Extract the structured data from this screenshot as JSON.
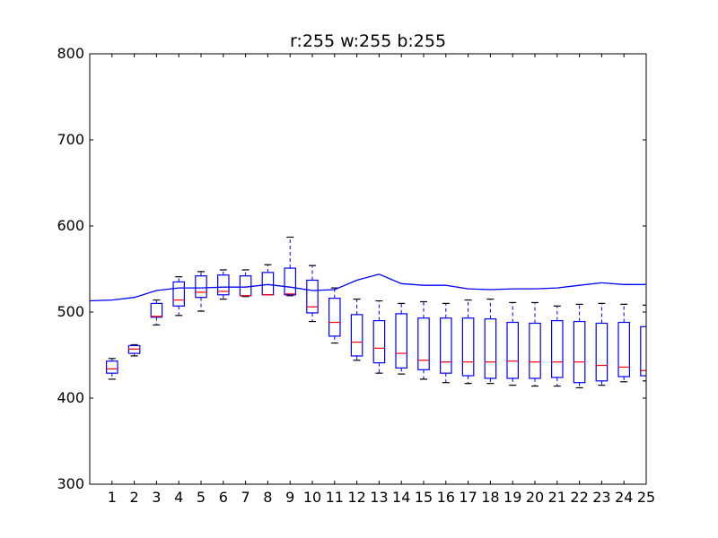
{
  "chart_data": {
    "type": "boxplot",
    "title": "r:255 w:255 b:255",
    "xlabel": "",
    "ylabel": "",
    "xlim": [
      0,
      25
    ],
    "ylim": [
      300,
      800
    ],
    "x_ticks": [
      1,
      2,
      3,
      4,
      5,
      6,
      7,
      8,
      9,
      10,
      11,
      12,
      13,
      14,
      15,
      16,
      17,
      18,
      19,
      20,
      21,
      22,
      23,
      24,
      25
    ],
    "y_ticks": [
      300,
      400,
      500,
      600,
      700,
      800
    ],
    "grid": false,
    "colors": {
      "box": "#0000ff",
      "median": "#ff0000",
      "whisker": "#000000",
      "line": "#0000ff",
      "axes": "#000000"
    },
    "boxes": [
      {
        "x": 1,
        "whisker_low": 422,
        "q1": 429,
        "median": 434,
        "q3": 443,
        "whisker_high": 446
      },
      {
        "x": 2,
        "whisker_low": 449,
        "q1": 452,
        "median": 457,
        "q3": 461,
        "whisker_high": 462
      },
      {
        "x": 3,
        "whisker_low": 485,
        "q1": 494,
        "median": 495,
        "q3": 510,
        "whisker_high": 514
      },
      {
        "x": 4,
        "whisker_low": 496,
        "q1": 507,
        "median": 514,
        "q3": 535,
        "whisker_high": 541
      },
      {
        "x": 5,
        "whisker_low": 501,
        "q1": 517,
        "median": 523,
        "q3": 542,
        "whisker_high": 547
      },
      {
        "x": 6,
        "whisker_low": 515,
        "q1": 520,
        "median": 524,
        "q3": 543,
        "whisker_high": 549
      },
      {
        "x": 7,
        "whisker_low": 518,
        "q1": 519,
        "median": 519,
        "q3": 542,
        "whisker_high": 549
      },
      {
        "x": 8,
        "whisker_low": 520,
        "q1": 520,
        "median": 520,
        "q3": 546,
        "whisker_high": 555
      },
      {
        "x": 9,
        "whisker_low": 519,
        "q1": 520,
        "median": 521,
        "q3": 551,
        "whisker_high": 587
      },
      {
        "x": 10,
        "whisker_low": 489,
        "q1": 499,
        "median": 506,
        "q3": 537,
        "whisker_high": 554
      },
      {
        "x": 11,
        "whisker_low": 464,
        "q1": 472,
        "median": 488,
        "q3": 516,
        "whisker_high": 528
      },
      {
        "x": 12,
        "whisker_low": 444,
        "q1": 449,
        "median": 465,
        "q3": 497,
        "whisker_high": 515
      },
      {
        "x": 13,
        "whisker_low": 429,
        "q1": 441,
        "median": 458,
        "q3": 490,
        "whisker_high": 513
      },
      {
        "x": 14,
        "whisker_low": 428,
        "q1": 435,
        "median": 452,
        "q3": 498,
        "whisker_high": 510
      },
      {
        "x": 15,
        "whisker_low": 422,
        "q1": 433,
        "median": 444,
        "q3": 493,
        "whisker_high": 512
      },
      {
        "x": 16,
        "whisker_low": 418,
        "q1": 429,
        "median": 442,
        "q3": 493,
        "whisker_high": 510
      },
      {
        "x": 17,
        "whisker_low": 417,
        "q1": 426,
        "median": 442,
        "q3": 493,
        "whisker_high": 514
      },
      {
        "x": 18,
        "whisker_low": 417,
        "q1": 423,
        "median": 442,
        "q3": 492,
        "whisker_high": 515
      },
      {
        "x": 19,
        "whisker_low": 415,
        "q1": 423,
        "median": 443,
        "q3": 488,
        "whisker_high": 511
      },
      {
        "x": 20,
        "whisker_low": 414,
        "q1": 423,
        "median": 442,
        "q3": 487,
        "whisker_high": 511
      },
      {
        "x": 21,
        "whisker_low": 414,
        "q1": 424,
        "median": 442,
        "q3": 490,
        "whisker_high": 507
      },
      {
        "x": 22,
        "whisker_low": 412,
        "q1": 418,
        "median": 442,
        "q3": 489,
        "whisker_high": 509
      },
      {
        "x": 23,
        "whisker_low": 415,
        "q1": 420,
        "median": 438,
        "q3": 487,
        "whisker_high": 510
      },
      {
        "x": 24,
        "whisker_low": 419,
        "q1": 425,
        "median": 436,
        "q3": 488,
        "whisker_high": 509
      },
      {
        "x": 25,
        "whisker_low": 420,
        "q1": 426,
        "median": 432,
        "q3": 483,
        "whisker_high": 508
      }
    ],
    "line_series": {
      "x": [
        0,
        1,
        2,
        3,
        4,
        5,
        6,
        7,
        8,
        9,
        10,
        11,
        12,
        13,
        14,
        15,
        16,
        17,
        18,
        19,
        20,
        21,
        22,
        23,
        24,
        25
      ],
      "values": [
        513,
        514,
        517,
        525,
        528,
        528,
        529,
        529,
        532,
        529,
        525,
        526,
        537,
        544,
        533,
        531,
        531,
        527,
        526,
        527,
        527,
        528,
        531,
        534,
        532,
        532
      ]
    }
  }
}
